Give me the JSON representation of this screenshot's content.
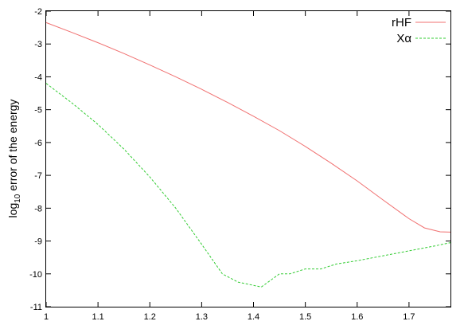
{
  "chart_data": {
    "type": "line",
    "title": "",
    "xlabel": "",
    "ylabel": {
      "prefix": "log",
      "subscript": "10",
      "suffix": " error of the energy"
    },
    "xlim": [
      1.0,
      1.78
    ],
    "ylim": [
      -11,
      -2
    ],
    "x_ticks": [
      1,
      1.1,
      1.2,
      1.3,
      1.4,
      1.5,
      1.6,
      1.7
    ],
    "x_tick_labels": [
      "1",
      "1.1",
      "1.2",
      "1.3",
      "1.4",
      "1.5",
      "1.6",
      "1.7"
    ],
    "y_ticks": [
      -2,
      -3,
      -4,
      -5,
      -6,
      -7,
      -8,
      -9,
      -10,
      -11
    ],
    "y_tick_labels": [
      "-2",
      "-3",
      "-4",
      "-5",
      "-6",
      "-7",
      "-8",
      "-9",
      "-10",
      "-11"
    ],
    "grid": false,
    "legend_position": "top-right",
    "series": [
      {
        "name": "rHF",
        "color": "#f07070",
        "dash": "solid",
        "x": [
          1.0,
          1.05,
          1.1,
          1.15,
          1.2,
          1.25,
          1.3,
          1.35,
          1.4,
          1.45,
          1.5,
          1.55,
          1.6,
          1.65,
          1.7,
          1.73,
          1.76,
          1.78
        ],
        "y": [
          -2.35,
          -2.65,
          -2.96,
          -3.29,
          -3.64,
          -4.0,
          -4.38,
          -4.78,
          -5.2,
          -5.64,
          -6.12,
          -6.63,
          -7.17,
          -7.75,
          -8.32,
          -8.6,
          -8.72,
          -8.73
        ]
      },
      {
        "name": "Xα",
        "color": "#33cc33",
        "dash": "dashed",
        "x": [
          1.0,
          1.05,
          1.1,
          1.15,
          1.2,
          1.25,
          1.3,
          1.34,
          1.37,
          1.4,
          1.415,
          1.45,
          1.47,
          1.5,
          1.53,
          1.56,
          1.6,
          1.65,
          1.7,
          1.75,
          1.78
        ],
        "y": [
          -4.2,
          -4.8,
          -5.45,
          -6.2,
          -7.05,
          -8.0,
          -9.1,
          -10.0,
          -10.25,
          -10.35,
          -10.4,
          -10.0,
          -10.0,
          -9.85,
          -9.85,
          -9.7,
          -9.6,
          -9.45,
          -9.3,
          -9.15,
          -9.05
        ]
      }
    ]
  }
}
